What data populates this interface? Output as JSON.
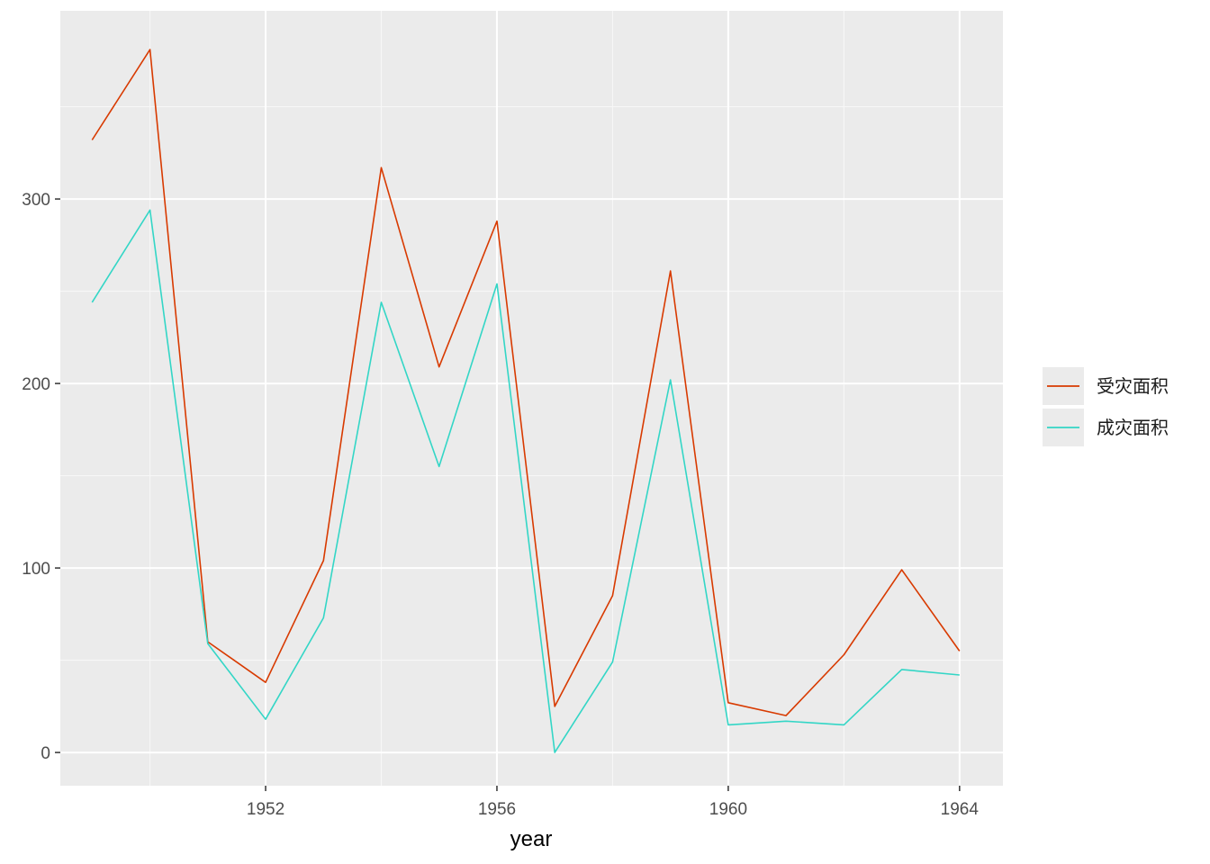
{
  "chart_data": {
    "type": "line",
    "xlabel": "year",
    "ylabel": "",
    "title": "",
    "xlim": [
      1948.45,
      1964.75
    ],
    "ylim": [
      -18,
      402
    ],
    "x_ticks": [
      1952,
      1956,
      1960,
      1964
    ],
    "x_minor": [
      1950,
      1954,
      1958,
      1962
    ],
    "y_ticks": [
      0,
      100,
      200,
      300
    ],
    "y_minor": [
      50,
      150,
      250,
      350
    ],
    "grid": true,
    "background": "#ebebeb",
    "legend_position": "right",
    "x": [
      1949,
      1950,
      1951,
      1952,
      1953,
      1954,
      1955,
      1956,
      1957,
      1958,
      1959,
      1960,
      1961,
      1962,
      1963,
      1964
    ],
    "series": [
      {
        "name": "受灾面积",
        "color": "#d83a00",
        "values": [
          332,
          381,
          60,
          38,
          104,
          317,
          209,
          288,
          25,
          85,
          261,
          27,
          20,
          53,
          99,
          55
        ]
      },
      {
        "name": "成灾面积",
        "color": "#33d6c6",
        "values": [
          244,
          294,
          59,
          18,
          73,
          244,
          155,
          254,
          0,
          49,
          202,
          15,
          17,
          15,
          45,
          42
        ]
      }
    ]
  }
}
